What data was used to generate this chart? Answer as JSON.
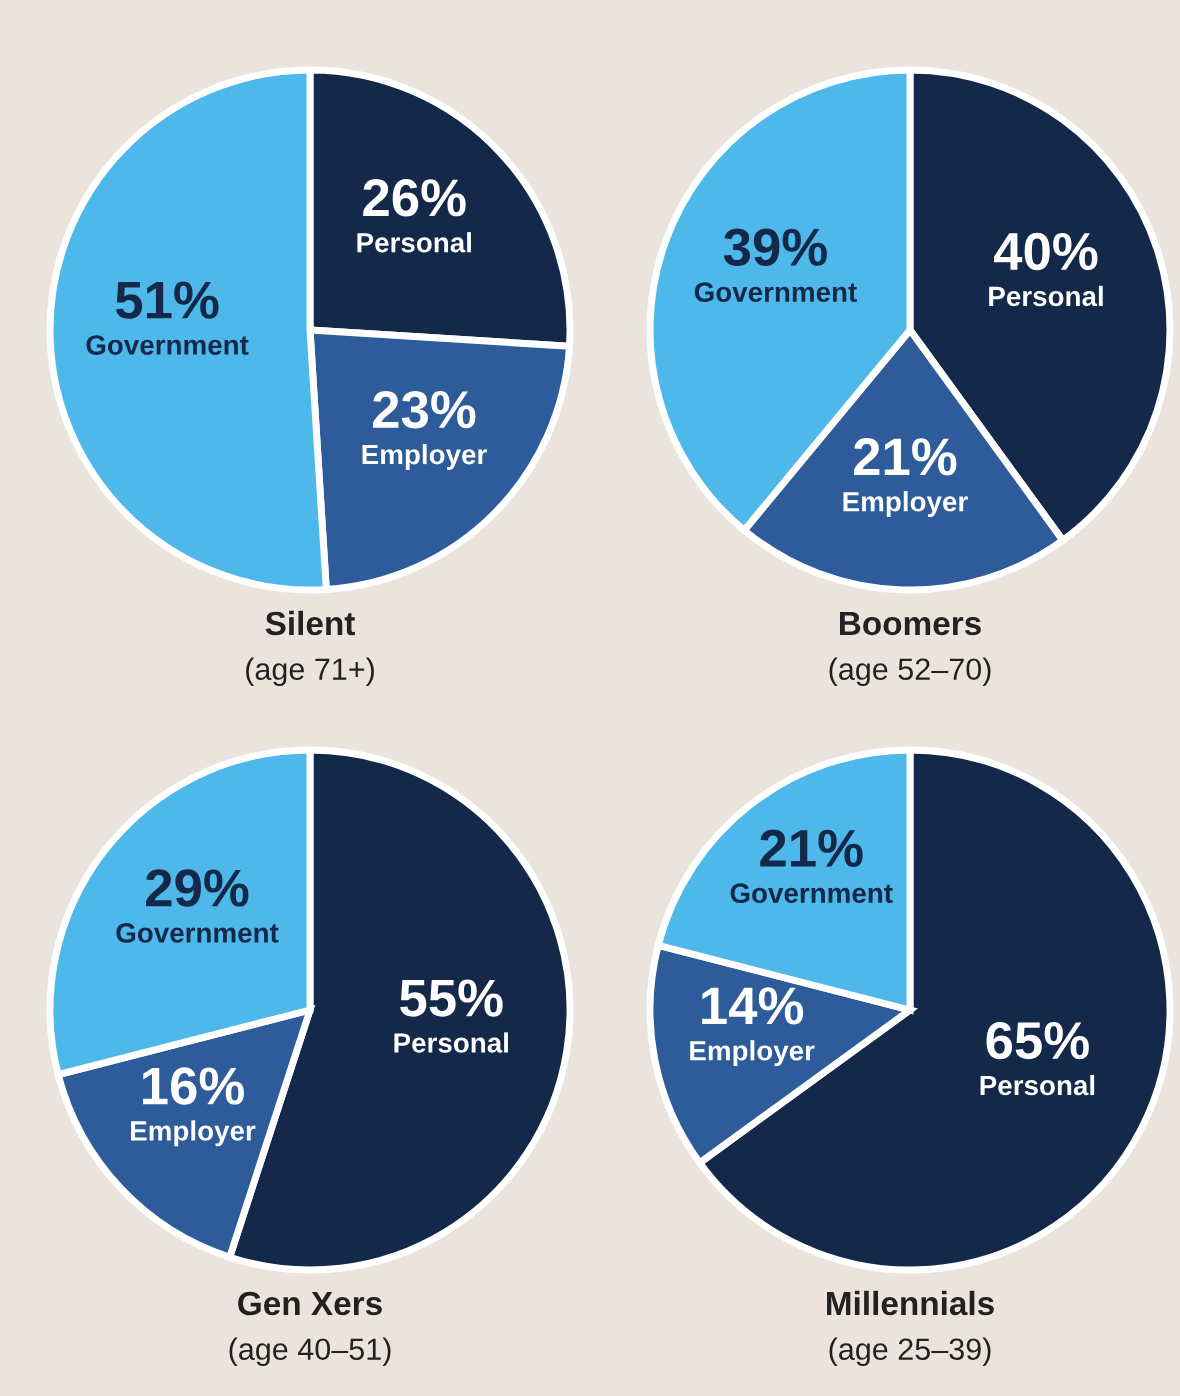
{
  "chart_data": [
    {
      "type": "pie",
      "title": "Silent",
      "subtitle": "(age 71+)",
      "categories": [
        "Personal",
        "Employer",
        "Government"
      ],
      "values": [
        26,
        23,
        51
      ],
      "value_labels": [
        "26%",
        "23%",
        "51%"
      ],
      "colors": [
        "#14294a",
        "#2e5c9a",
        "#4fb8ea"
      ]
    },
    {
      "type": "pie",
      "title": "Boomers",
      "subtitle": "(age 52–70)",
      "categories": [
        "Personal",
        "Employer",
        "Government"
      ],
      "values": [
        40,
        21,
        39
      ],
      "value_labels": [
        "40%",
        "21%",
        "39%"
      ],
      "colors": [
        "#14294a",
        "#2e5c9a",
        "#4fb8ea"
      ]
    },
    {
      "type": "pie",
      "title": "Gen Xers",
      "subtitle": "(age 40–51)",
      "categories": [
        "Personal",
        "Employer",
        "Government"
      ],
      "values": [
        55,
        16,
        29
      ],
      "value_labels": [
        "55%",
        "16%",
        "29%"
      ],
      "colors": [
        "#14294a",
        "#2e5c9a",
        "#4fb8ea"
      ]
    },
    {
      "type": "pie",
      "title": "Millennials",
      "subtitle": "(age 25–39)",
      "categories": [
        "Personal",
        "Employer",
        "Government"
      ],
      "values": [
        65,
        14,
        21
      ],
      "value_labels": [
        "65%",
        "14%",
        "21%"
      ],
      "colors": [
        "#14294a",
        "#2e5c9a",
        "#4fb8ea"
      ]
    }
  ]
}
